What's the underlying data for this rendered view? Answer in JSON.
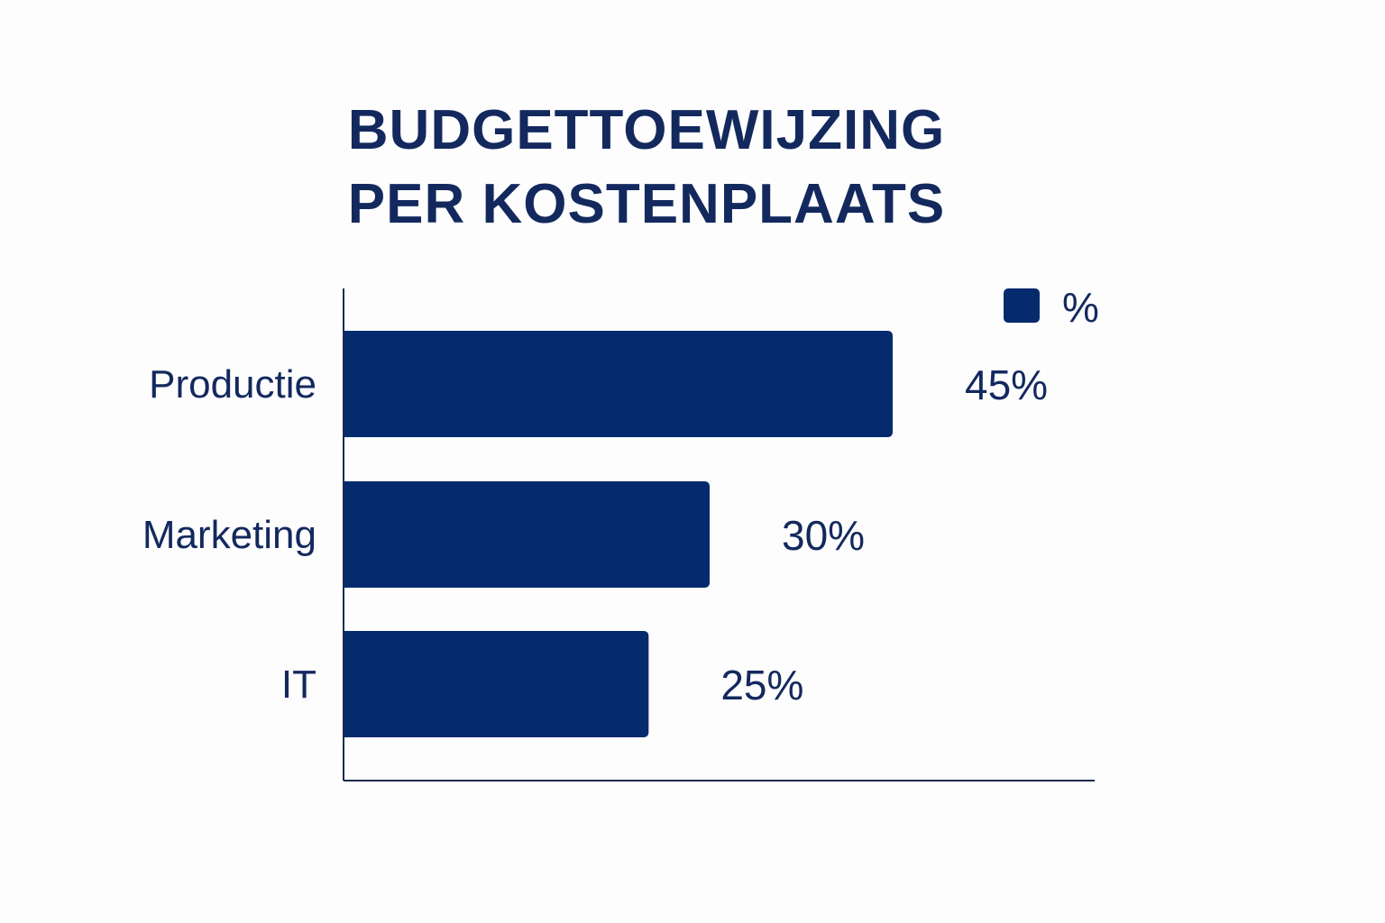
{
  "chart_data": {
    "type": "bar",
    "orientation": "horizontal",
    "title_lines": [
      "BUDGETTOEWIJZING",
      "PER KOSTENPLAATS"
    ],
    "categories": [
      "Productie",
      "Marketing",
      "IT"
    ],
    "series": [
      {
        "name": "%",
        "values": [
          45,
          30,
          25
        ]
      }
    ],
    "data_labels": [
      "45%",
      "30%",
      "25%"
    ],
    "xlabel": "",
    "ylabel": "",
    "xlim": [
      0,
      45
    ],
    "grid": false,
    "legend": "top-right",
    "colors": {
      "bar": "#052a6e",
      "text": "#13295e",
      "axis": "#1b2a52"
    }
  }
}
